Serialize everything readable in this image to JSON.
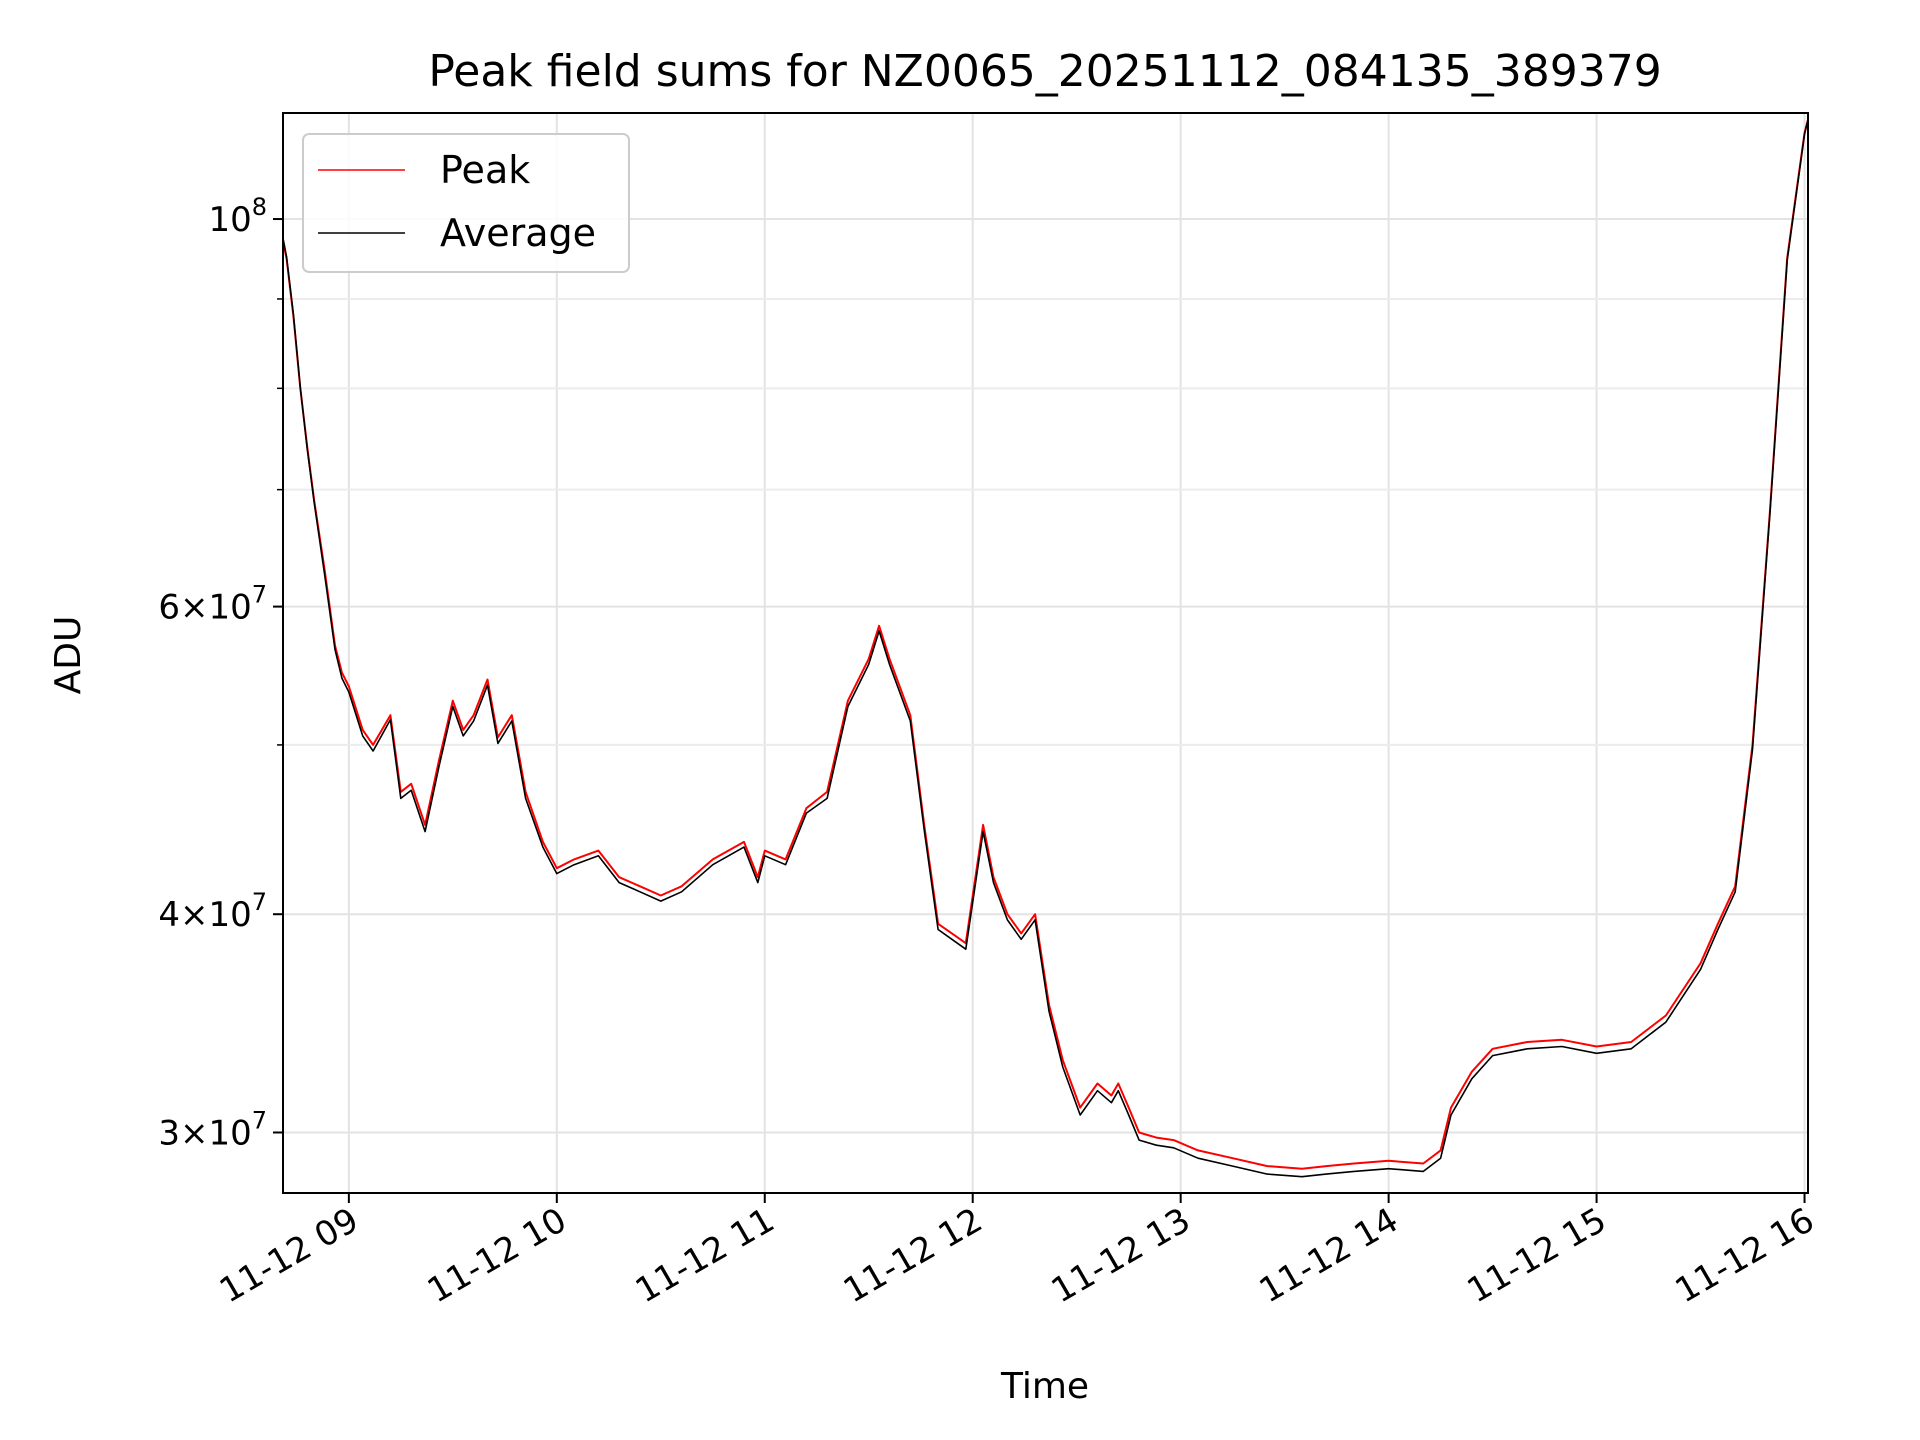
{
  "chart_data": {
    "type": "line",
    "title": "Peak field sums for NZ0065_20251112_084135_389379",
    "xlabel": "Time",
    "ylabel": "ADU",
    "yscale": "log",
    "ylim": [
      27700000,
      115000000
    ],
    "xlim": [
      "2025-11-12 08:41",
      "2025-11-12 16:01"
    ],
    "grid": true,
    "legend_position": "upper-left",
    "x_ticks": [
      {
        "value": "2025-11-12 09:00",
        "label": "11-12 09"
      },
      {
        "value": "2025-11-12 10:00",
        "label": "11-12 10"
      },
      {
        "value": "2025-11-12 11:00",
        "label": "11-12 11"
      },
      {
        "value": "2025-11-12 12:00",
        "label": "11-12 12"
      },
      {
        "value": "2025-11-12 13:00",
        "label": "11-12 13"
      },
      {
        "value": "2025-11-12 14:00",
        "label": "11-12 14"
      },
      {
        "value": "2025-11-12 15:00",
        "label": "11-12 15"
      },
      {
        "value": "2025-11-12 16:00",
        "label": "11-12 16"
      }
    ],
    "y_ticks": [
      {
        "value": 100000000,
        "mantissa": "",
        "exponent": "8"
      },
      {
        "value": 60000000,
        "mantissa": "6",
        "exponent": "7"
      },
      {
        "value": 40000000,
        "mantissa": "4",
        "exponent": "7"
      },
      {
        "value": 30000000,
        "mantissa": "3",
        "exponent": "7"
      }
    ],
    "y_minor_ticks": [
      50000000,
      70000000,
      80000000,
      90000000
    ],
    "x": [
      "2025-11-12 08:41",
      "2025-11-12 08:42",
      "2025-11-12 08:44",
      "2025-11-12 08:46",
      "2025-11-12 08:48",
      "2025-11-12 08:50",
      "2025-11-12 08:53",
      "2025-11-12 08:56",
      "2025-11-12 08:58",
      "2025-11-12 09:00",
      "2025-11-12 09:04",
      "2025-11-12 09:07",
      "2025-11-12 09:12",
      "2025-11-12 09:15",
      "2025-11-12 09:18",
      "2025-11-12 09:22",
      "2025-11-12 09:26",
      "2025-11-12 09:30",
      "2025-11-12 09:33",
      "2025-11-12 09:36",
      "2025-11-12 09:40",
      "2025-11-12 09:43",
      "2025-11-12 09:47",
      "2025-11-12 09:51",
      "2025-11-12 09:56",
      "2025-11-12 10:00",
      "2025-11-12 10:05",
      "2025-11-12 10:12",
      "2025-11-12 10:18",
      "2025-11-12 10:24",
      "2025-11-12 10:30",
      "2025-11-12 10:36",
      "2025-11-12 10:45",
      "2025-11-12 10:54",
      "2025-11-12 10:58",
      "2025-11-12 11:00",
      "2025-11-12 11:06",
      "2025-11-12 11:12",
      "2025-11-12 11:18",
      "2025-11-12 11:24",
      "2025-11-12 11:30",
      "2025-11-12 11:33",
      "2025-11-12 11:36",
      "2025-11-12 11:42",
      "2025-11-12 11:46",
      "2025-11-12 11:50",
      "2025-11-12 11:54",
      "2025-11-12 11:58",
      "2025-11-12 12:03",
      "2025-11-12 12:06",
      "2025-11-12 12:10",
      "2025-11-12 12:14",
      "2025-11-12 12:18",
      "2025-11-12 12:22",
      "2025-11-12 12:26",
      "2025-11-12 12:31",
      "2025-11-12 12:36",
      "2025-11-12 12:40",
      "2025-11-12 12:42",
      "2025-11-12 12:45",
      "2025-11-12 12:48",
      "2025-11-12 12:53",
      "2025-11-12 12:58",
      "2025-11-12 13:05",
      "2025-11-12 13:15",
      "2025-11-12 13:25",
      "2025-11-12 13:35",
      "2025-11-12 13:42",
      "2025-11-12 13:50",
      "2025-11-12 14:00",
      "2025-11-12 14:10",
      "2025-11-12 14:15",
      "2025-11-12 14:18",
      "2025-11-12 14:24",
      "2025-11-12 14:30",
      "2025-11-12 14:40",
      "2025-11-12 14:50",
      "2025-11-12 15:00",
      "2025-11-12 15:10",
      "2025-11-12 15:20",
      "2025-11-12 15:30",
      "2025-11-12 15:35",
      "2025-11-12 15:40",
      "2025-11-12 15:45",
      "2025-11-12 15:50",
      "2025-11-12 15:55",
      "2025-11-12 16:00",
      "2025-11-12 16:01"
    ],
    "series": [
      {
        "name": "Peak",
        "color": "#ff0000",
        "values": [
          97000000,
          95000000,
          88000000,
          80000000,
          74000000,
          69000000,
          63000000,
          57000000,
          55000000,
          54000000,
          51000000,
          50000000,
          52000000,
          47000000,
          47500000,
          45000000,
          49000000,
          53000000,
          51000000,
          52000000,
          54500000,
          50500000,
          52000000,
          47000000,
          44000000,
          42500000,
          43000000,
          43500000,
          42000000,
          41500000,
          41000000,
          41500000,
          43000000,
          44000000,
          42000000,
          43500000,
          43000000,
          46000000,
          47000000,
          53000000,
          56000000,
          58500000,
          56000000,
          52000000,
          45000000,
          39500000,
          39000000,
          38500000,
          45000000,
          42000000,
          40000000,
          39000000,
          40000000,
          35500000,
          33000000,
          31000000,
          32000000,
          31500000,
          32000000,
          31000000,
          30000000,
          29800000,
          29700000,
          29300000,
          29000000,
          28700000,
          28600000,
          28700000,
          28800000,
          28900000,
          28800000,
          29300000,
          31000000,
          32500000,
          33500000,
          33800000,
          33900000,
          33600000,
          33800000,
          35000000,
          37500000,
          39500000,
          41500000,
          50000000,
          68000000,
          95000000,
          112000000,
          114000000
        ]
      },
      {
        "name": "Average",
        "color": "#000000",
        "values": [
          97500000,
          95200000,
          88200000,
          80100000,
          73800000,
          68800000,
          62600000,
          56700000,
          54600000,
          53600000,
          50600000,
          49600000,
          51700000,
          46600000,
          47100000,
          44600000,
          48600000,
          52600000,
          50600000,
          51600000,
          54100000,
          50100000,
          51600000,
          46600000,
          43700000,
          42200000,
          42700000,
          43200000,
          41700000,
          41200000,
          40700000,
          41200000,
          42700000,
          43700000,
          41700000,
          43200000,
          42700000,
          45700000,
          46600000,
          52600000,
          55600000,
          58100000,
          55600000,
          51600000,
          44700000,
          39200000,
          38700000,
          38200000,
          44600000,
          41700000,
          39700000,
          38700000,
          39700000,
          35200000,
          32700000,
          30700000,
          31700000,
          31200000,
          31700000,
          30700000,
          29700000,
          29500000,
          29400000,
          29000000,
          28700000,
          28400000,
          28300000,
          28400000,
          28500000,
          28600000,
          28500000,
          29000000,
          30700000,
          32200000,
          33200000,
          33500000,
          33600000,
          33300000,
          33500000,
          34700000,
          37200000,
          39200000,
          41200000,
          49700000,
          67800000,
          94700000,
          111800000,
          114000000
        ]
      }
    ]
  }
}
